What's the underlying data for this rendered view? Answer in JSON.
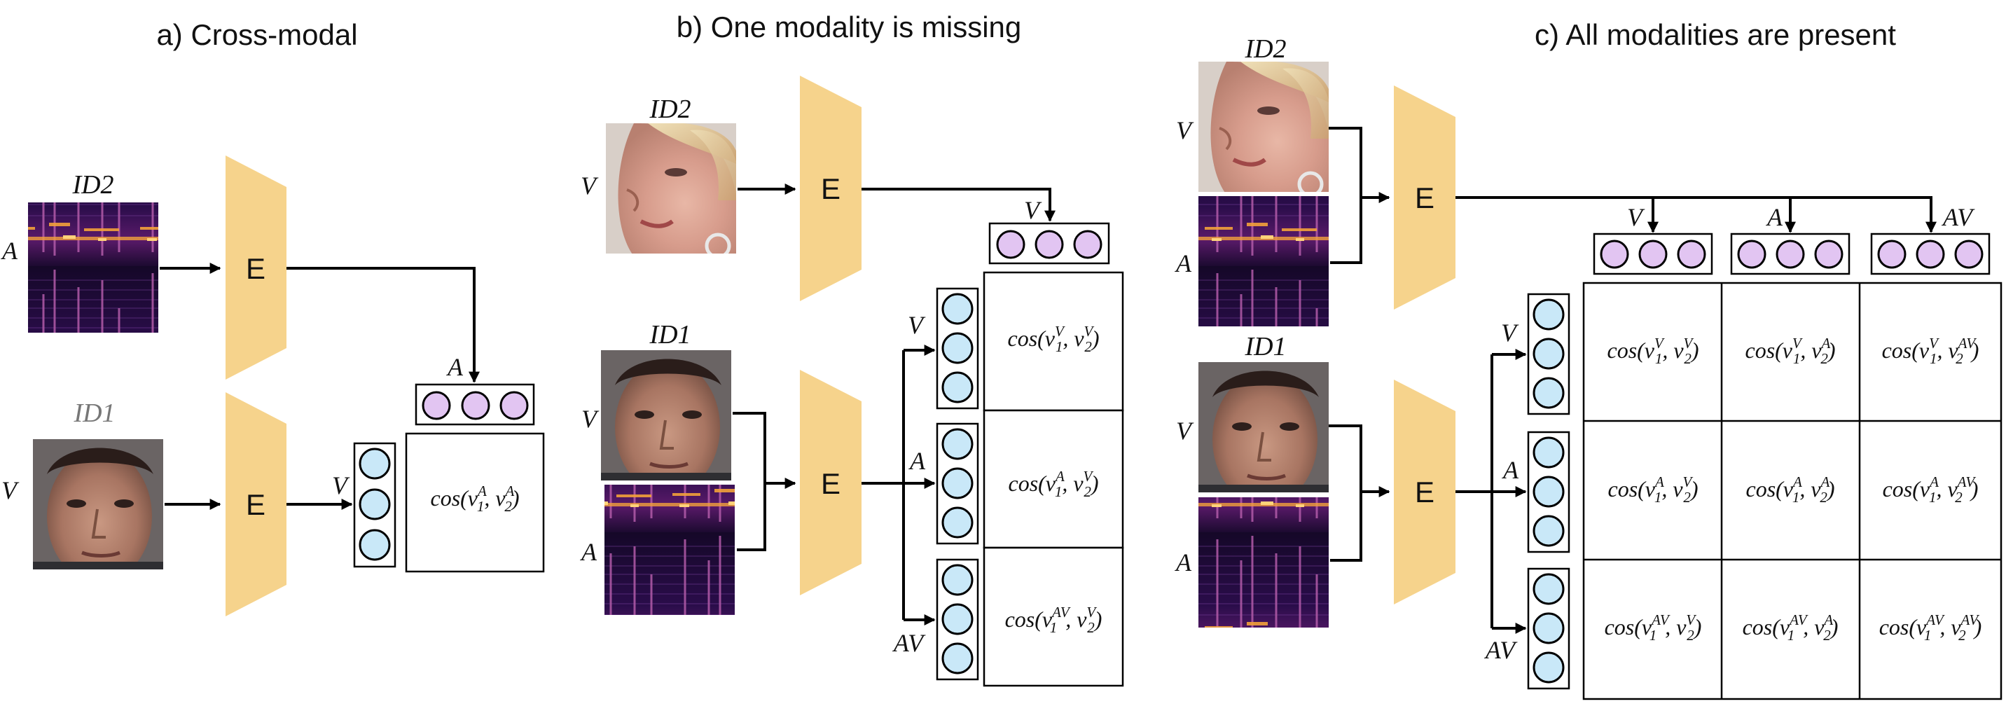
{
  "panels": {
    "a": {
      "title": "a) Cross-modal"
    },
    "b": {
      "title": "b) One modality is missing"
    },
    "c": {
      "title": "c) All modalities are present"
    }
  },
  "encoder_label": "E",
  "identity_labels": {
    "id1": "ID1",
    "id2": "ID2"
  },
  "modality_labels": {
    "v": "V",
    "a": "A",
    "av": "AV"
  },
  "cos_prefix": "cos",
  "similarity_cells": {
    "a": [
      "cos(v1^A, v2^A)"
    ],
    "b": [
      "cos(v1^V, v2^V)",
      "cos(v1^A, v2^V)",
      "cos(v1^AV, v2^V)"
    ],
    "c": [
      "cos(v1^V, v2^V)",
      "cos(v1^V, v2^A)",
      "cos(v1^V, v2^AV)",
      "cos(v1^A, v2^V)",
      "cos(v1^A, v2^A)",
      "cos(v1^A, v2^AV)",
      "cos(v1^AV, v2^V)",
      "cos(v1^AV, v2^A)",
      "cos(v1^AV, v2^AV)"
    ]
  },
  "colors": {
    "encoder": "#f6d38c",
    "query_embedding_fill": "#e2c5f2",
    "gallery_embedding_fill": "#c9e8f8",
    "id1_title_in_panel_a": "#777777"
  },
  "images": [
    "spectrogram",
    "face-id2",
    "face-id1"
  ]
}
